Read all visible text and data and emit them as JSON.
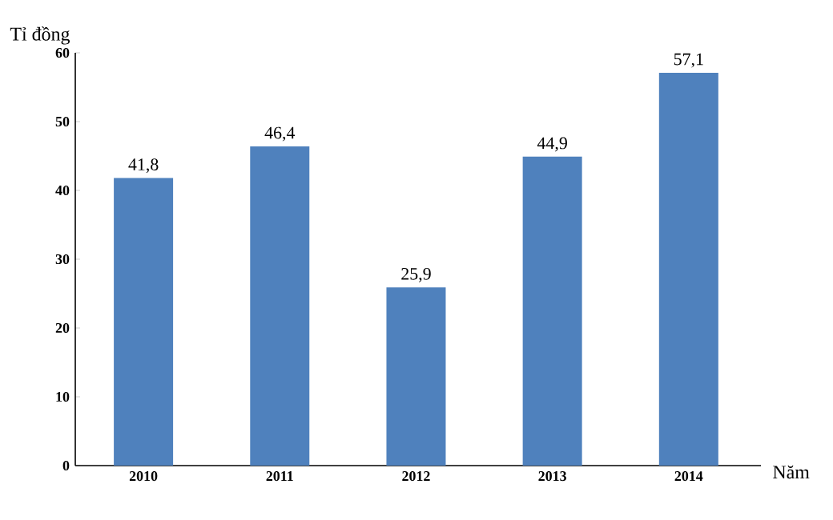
{
  "chart_data": {
    "type": "bar",
    "ylabel": "Tỉ đồng",
    "xlabel": "Năm",
    "categories": [
      "2010",
      "2011",
      "2012",
      "2013",
      "2014"
    ],
    "values": [
      41.8,
      46.4,
      25.9,
      44.9,
      57.1
    ],
    "value_labels": [
      "41,8",
      "46,4",
      "25,9",
      "44,9",
      "57,1"
    ],
    "color": "#4f81bd",
    "ylim": [
      0,
      60
    ],
    "yticks": [
      0,
      10,
      20,
      30,
      40,
      50,
      60
    ]
  }
}
